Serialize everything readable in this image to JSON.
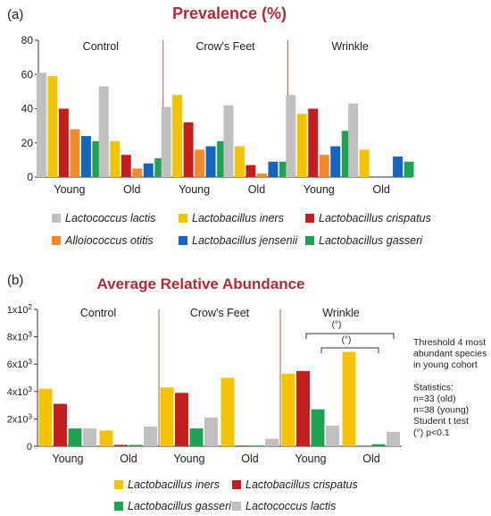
{
  "panels": {
    "a": {
      "label": "(a)"
    },
    "b": {
      "label": "(b)"
    }
  },
  "chart_data": [
    {
      "type": "bar",
      "title": "Prevalence (%)",
      "xlabel": "",
      "ylabel": "",
      "ylim": [
        0,
        80
      ],
      "yticks": [
        "0",
        "20",
        "40",
        "60",
        "80"
      ],
      "groups": [
        "Control",
        "Crow's Feet",
        "Wrinkle"
      ],
      "categories": [
        "Young",
        "Old"
      ],
      "colors": [
        "#c0c0c0",
        "#f5c400",
        "#c41f1f",
        "#f08a2a",
        "#1565c0",
        "#1ea352"
      ],
      "series": [
        {
          "name": "Lactococcus lactis",
          "values": [
            [
              61,
              53
            ],
            [
              41,
              42
            ],
            [
              48,
              43
            ]
          ]
        },
        {
          "name": "Lactobacillus iners",
          "values": [
            [
              59,
              21
            ],
            [
              48,
              18
            ],
            [
              37,
              16
            ]
          ]
        },
        {
          "name": "Lactobacillus crispatus",
          "values": [
            [
              40,
              13
            ],
            [
              32,
              7
            ],
            [
              40,
              0
            ]
          ]
        },
        {
          "name": "Alloiococcus otitis",
          "values": [
            [
              28,
              5
            ],
            [
              16,
              2
            ],
            [
              13,
              0
            ]
          ]
        },
        {
          "name": "Lactobacillus jensenii",
          "values": [
            [
              24,
              8
            ],
            [
              18,
              9
            ],
            [
              18,
              12
            ]
          ]
        },
        {
          "name": "Lactobacillus gasseri",
          "values": [
            [
              21,
              11
            ],
            [
              21,
              9
            ],
            [
              27,
              9
            ]
          ]
        }
      ],
      "legend": "bottom"
    },
    {
      "type": "bar",
      "title": "Average Relative Abundance",
      "xlabel": "",
      "ylabel": "",
      "ylim": [
        0,
        10000
      ],
      "yticks": [
        "0",
        "2x10³",
        "4x10³",
        "6x10³",
        "8x10³",
        "1x10²"
      ],
      "groups": [
        "Control",
        "Crow's Feet",
        "Wrinkle"
      ],
      "categories": [
        "Young",
        "Old"
      ],
      "colors": [
        "#f5c400",
        "#c41f1f",
        "#1ea352",
        "#c0c0c0"
      ],
      "series": [
        {
          "name": "Lactobacillus iners",
          "values": [
            [
              4200,
              1150
            ],
            [
              4300,
              5000
            ],
            [
              5300,
              6900
            ]
          ]
        },
        {
          "name": "Lactobacillus crispatus",
          "values": [
            [
              3100,
              100
            ],
            [
              3900,
              50
            ],
            [
              5500,
              0
            ]
          ]
        },
        {
          "name": "Lactobacillus gasseri",
          "values": [
            [
              1300,
              100
            ],
            [
              1300,
              50
            ],
            [
              2700,
              150
            ]
          ]
        },
        {
          "name": "Lactococcus lactis",
          "values": [
            [
              1300,
              1450
            ],
            [
              2100,
              550
            ],
            [
              1500,
              1050
            ]
          ]
        }
      ],
      "legend": "bottom",
      "annotations": {
        "sig": [
          "(°)",
          "(°)"
        ],
        "notes": [
          "Threshold 4 most",
          "abundant species",
          "in young cohort",
          "",
          "Statistics:",
          "n=33 (old)",
          "n=38 (young)",
          "Student t test",
          "(°) p<0.1"
        ]
      }
    }
  ]
}
